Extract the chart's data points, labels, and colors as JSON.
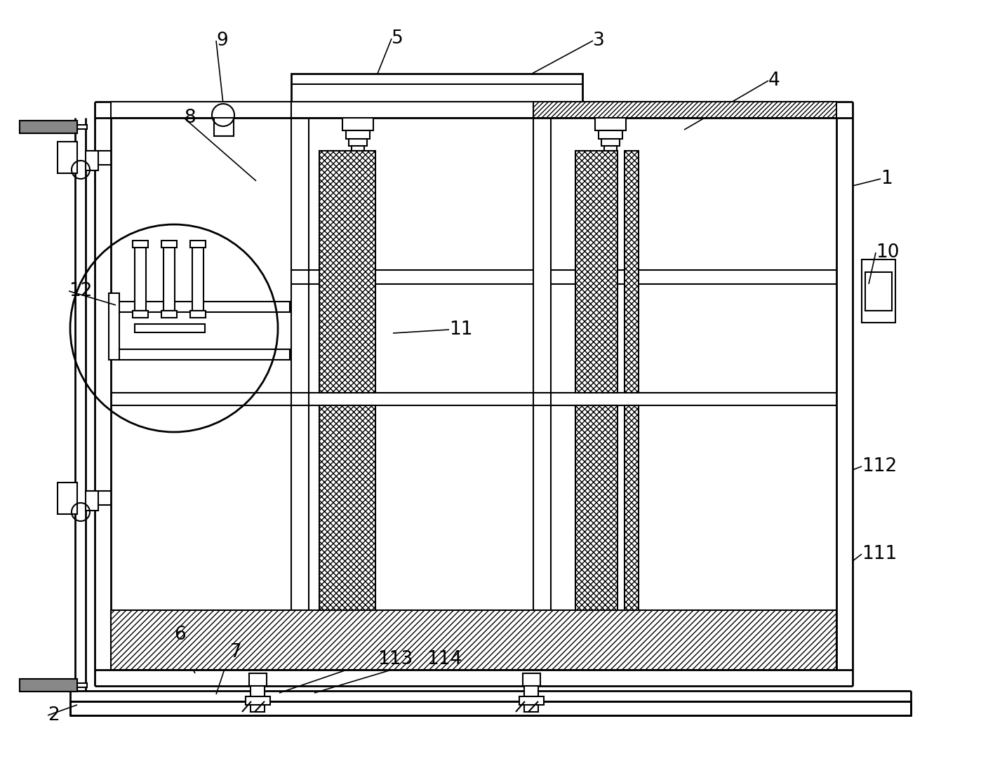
{
  "bg_color": "#ffffff",
  "line_color": "#000000",
  "figure_width": 13.98,
  "figure_height": 11.15,
  "labels_data": [
    [
      "1",
      1255,
      255
    ],
    [
      "2",
      68,
      1020
    ],
    [
      "3",
      845,
      58
    ],
    [
      "4",
      1095,
      115
    ],
    [
      "5",
      558,
      55
    ],
    [
      "6",
      248,
      905
    ],
    [
      "7",
      328,
      930
    ],
    [
      "8",
      262,
      168
    ],
    [
      "9",
      308,
      58
    ],
    [
      "10",
      1248,
      360
    ],
    [
      "11",
      640,
      470
    ],
    [
      "12",
      98,
      415
    ],
    [
      "111",
      1228,
      790
    ],
    [
      "112",
      1228,
      665
    ],
    [
      "113",
      538,
      940
    ],
    [
      "114",
      608,
      940
    ]
  ],
  "ref_lines": [
    [
      308,
      58,
      318,
      148
    ],
    [
      262,
      168,
      365,
      258
    ],
    [
      558,
      55,
      538,
      105
    ],
    [
      845,
      58,
      758,
      105
    ],
    [
      1095,
      115,
      975,
      185
    ],
    [
      1255,
      255,
      1215,
      265
    ],
    [
      1248,
      360,
      1238,
      405
    ],
    [
      68,
      1020,
      110,
      1005
    ],
    [
      248,
      905,
      278,
      960
    ],
    [
      328,
      930,
      308,
      990
    ],
    [
      640,
      470,
      560,
      475
    ],
    [
      98,
      415,
      165,
      435
    ],
    [
      1228,
      665,
      1215,
      670
    ],
    [
      1228,
      790,
      1215,
      800
    ],
    [
      538,
      940,
      398,
      988
    ],
    [
      608,
      940,
      448,
      988
    ]
  ]
}
